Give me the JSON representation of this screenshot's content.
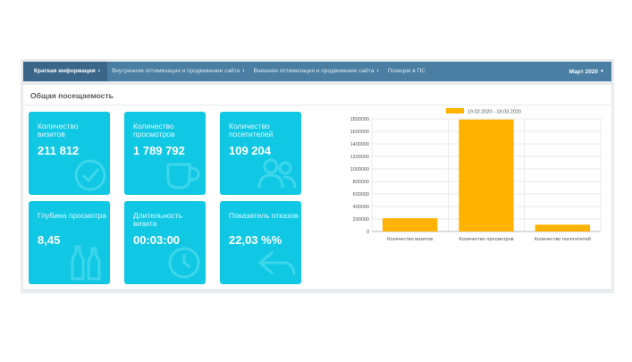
{
  "nav": {
    "tabs": [
      {
        "label": "Краткая информация",
        "active": true
      },
      {
        "label": "Внутренняя оптимизация и продвижение сайта",
        "active": false
      },
      {
        "label": "Внешняя оптимизация и продвижение сайта",
        "active": false
      },
      {
        "label": "Позиции в ПС",
        "active": false
      }
    ],
    "month": "Март 2020"
  },
  "panel": {
    "title": "Общая посещаемость"
  },
  "tiles": [
    {
      "label": "Количество визитов",
      "value": "211 812",
      "icon": "check-circle-icon"
    },
    {
      "label": "Количество просмотров",
      "value": "1 789 792",
      "icon": "coffee-cup-icon"
    },
    {
      "label": "Количество посетителей",
      "value": "109 204",
      "icon": "users-icon"
    },
    {
      "label": "Глубина просмотра",
      "value": "8,45",
      "icon": "bottles-icon"
    },
    {
      "label": "Длительность визита",
      "value": "00:03:00",
      "icon": "clock-icon"
    },
    {
      "label": "Показатель отказов",
      "value": "22,03 %%",
      "icon": "arrow-back-icon"
    }
  ],
  "colors": {
    "nav_bg": "#4a7ea2",
    "tile_bg": "#10c8e4",
    "bar": "#ffb300"
  },
  "chart_data": {
    "type": "bar",
    "categories": [
      "Количество визитов",
      "Количество просмотров",
      "Количество посетителей"
    ],
    "series": [
      {
        "name": "19.02.2020 - 18.03.2020",
        "values": [
          211812,
          1789792,
          109204
        ]
      }
    ],
    "yticks": [
      "0",
      "200000",
      "400000",
      "600000",
      "800000",
      "1000000",
      "1200000",
      "1400000",
      "1600000",
      "1800000"
    ],
    "ylim": [
      0,
      1800000
    ],
    "grid": true,
    "legend": "top"
  }
}
